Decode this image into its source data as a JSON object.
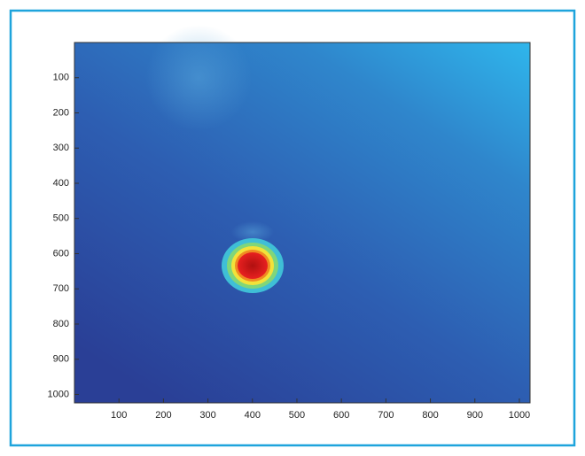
{
  "chart_data": {
    "type": "heatmap",
    "xlim": [
      0,
      1024
    ],
    "xticks": [
      100,
      200,
      300,
      400,
      500,
      600,
      700,
      800,
      900,
      1000
    ],
    "ylim": [
      1024,
      0
    ],
    "yticks": [
      100,
      200,
      300,
      400,
      500,
      600,
      700,
      800,
      900,
      1000
    ]
  }
}
